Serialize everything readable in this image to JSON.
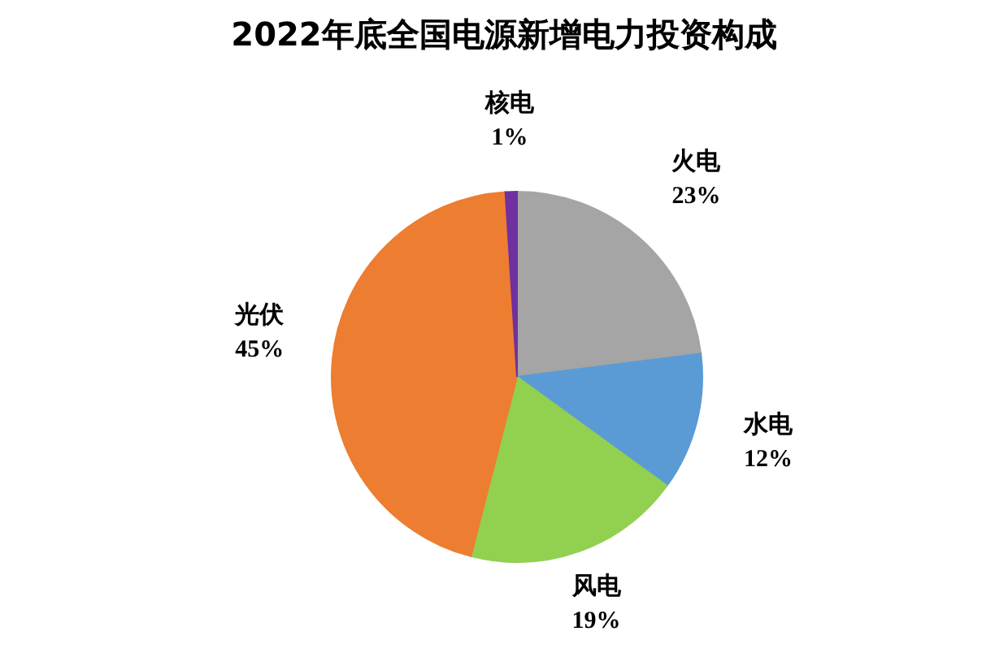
{
  "chart_data": {
    "type": "pie",
    "title": "2022年底全国电源新增电力投资构成",
    "categories": [
      "火电",
      "水电",
      "风电",
      "光伏",
      "核电"
    ],
    "values": [
      23,
      12,
      19,
      45,
      1
    ],
    "colors": [
      "#a5a5a5",
      "#5b9bd5",
      "#92d050",
      "#ed7d31",
      "#7030a0"
    ],
    "value_labels": [
      "23%",
      "12%",
      "19%",
      "45%",
      "1%"
    ]
  }
}
